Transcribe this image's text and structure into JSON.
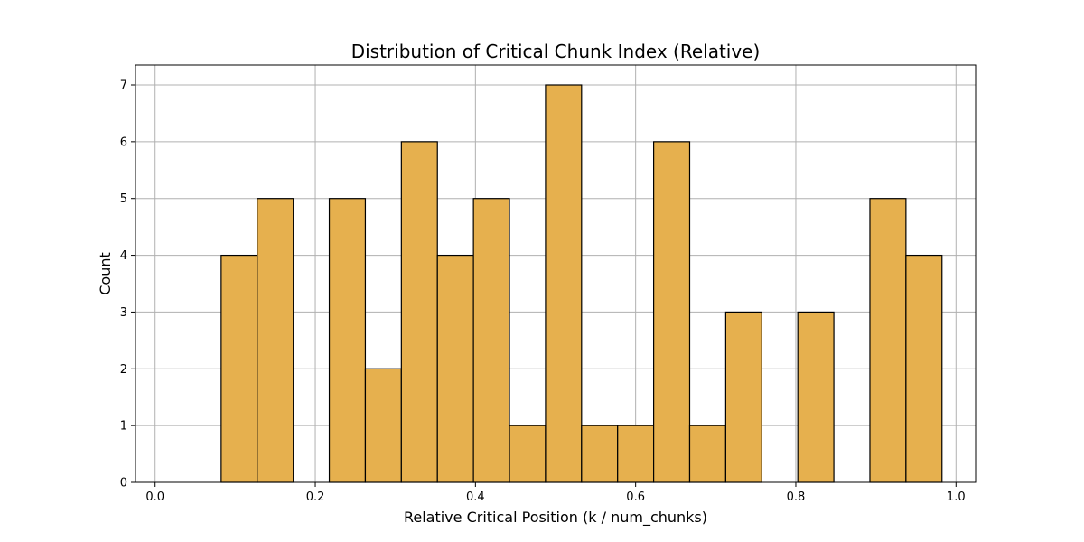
{
  "chart_data": {
    "type": "bar",
    "title": "Distribution of Critical Chunk Index (Relative)",
    "xlabel": "Relative Critical Position (k / num_chunks)",
    "ylabel": "Count",
    "xlim": [
      -0.0245,
      1.0245
    ],
    "ylim": [
      0,
      7.35
    ],
    "xticks": [
      0.0,
      0.2,
      0.4,
      0.6,
      0.8,
      1.0
    ],
    "xtick_labels": [
      "0.0",
      "0.2",
      "0.4",
      "0.6",
      "0.8",
      "1.0"
    ],
    "yticks": [
      0,
      1,
      2,
      3,
      4,
      5,
      6,
      7
    ],
    "ytick_labels": [
      "0",
      "1",
      "2",
      "3",
      "4",
      "5",
      "6",
      "7"
    ],
    "grid": true,
    "bar_color": "#e6b04e",
    "edge_color": "#000000",
    "bin_edges": [
      0.0825,
      0.1275,
      0.1725,
      0.2175,
      0.2625,
      0.3075,
      0.3525,
      0.3975,
      0.4425,
      0.4875,
      0.5325,
      0.5775,
      0.6225,
      0.6675,
      0.7125,
      0.7575,
      0.8025,
      0.8475,
      0.8925,
      0.9375,
      0.9825
    ],
    "counts": [
      4,
      5,
      0,
      5,
      2,
      6,
      4,
      5,
      1,
      7,
      1,
      1,
      6,
      1,
      3,
      0,
      3,
      0,
      5,
      4
    ]
  }
}
